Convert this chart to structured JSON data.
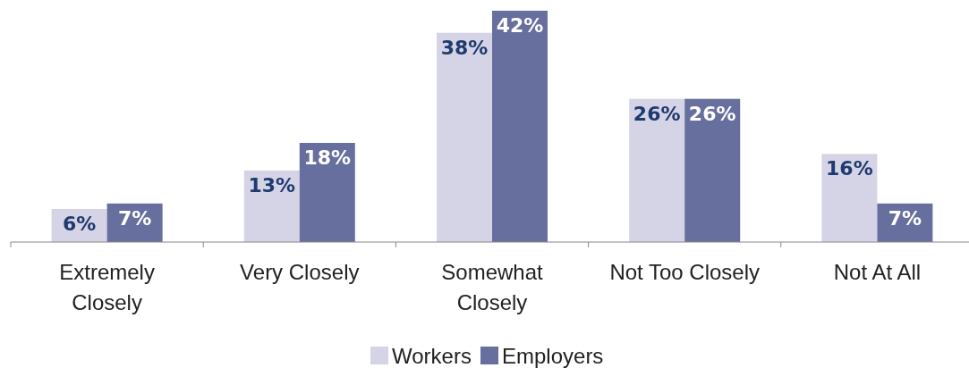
{
  "chart_data": {
    "type": "bar",
    "categories": [
      "Extremely Closely",
      "Very Closely",
      "Somewhat Closely",
      "Not Too Closely",
      "Not At All"
    ],
    "series": [
      {
        "name": "Workers",
        "color": "#d4d4e6",
        "values": [
          6,
          13,
          38,
          26,
          16
        ],
        "value_labels": [
          "6%",
          "13%",
          "38%",
          "26%",
          "16%"
        ]
      },
      {
        "name": "Employers",
        "color": "#676f9f",
        "values": [
          7,
          18,
          42,
          26,
          7
        ],
        "value_labels": [
          "7%",
          "18%",
          "42%",
          "26%",
          "7%"
        ]
      }
    ],
    "legend": "bottom"
  }
}
